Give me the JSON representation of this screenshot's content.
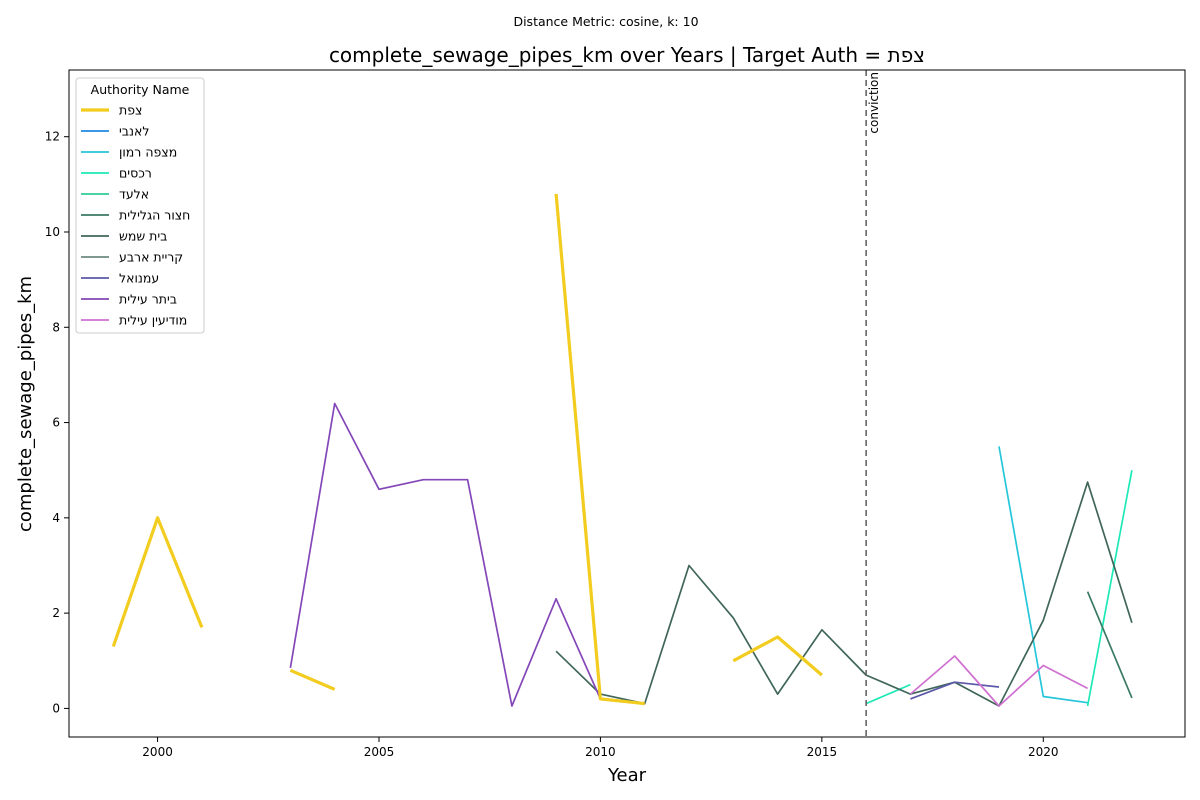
{
  "suptitle": "Distance Metric: cosine, k: 10",
  "chart_data": {
    "type": "line",
    "title": "complete_sewage_pipes_km over Years | Target Auth = צפת",
    "xlabel": "Year",
    "ylabel": "complete_sewage_pipes_km",
    "xlim": [
      1998.0,
      2023.2
    ],
    "ylim": [
      -0.6,
      13.4
    ],
    "xticks": [
      2000,
      2005,
      2010,
      2015,
      2020
    ],
    "yticks": [
      0,
      2,
      4,
      6,
      8,
      10,
      12
    ],
    "grid": false,
    "legend": {
      "title": "Authority Name",
      "placement": "top-left"
    },
    "vline": {
      "x": 2016,
      "label": "conviction",
      "color": "#666666"
    },
    "series": [
      {
        "name": "צפת",
        "color": "#f2cc1f",
        "target": true,
        "points": [
          [
            1999,
            1.3
          ],
          [
            2000,
            4.0
          ],
          [
            2001,
            1.7
          ],
          [
            2002,
            null
          ],
          [
            2003,
            0.8
          ],
          [
            2004,
            0.4
          ],
          [
            2005,
            null
          ],
          [
            2009,
            10.8
          ],
          [
            2010,
            0.2
          ],
          [
            2011,
            0.1
          ],
          [
            2012,
            null
          ],
          [
            2013,
            1.0
          ],
          [
            2014,
            1.5
          ],
          [
            2015,
            0.7
          ]
        ]
      },
      {
        "name": "לאנבי",
        "color": "#1e88e5",
        "points": []
      },
      {
        "name": "מצפה רמון",
        "color": "#26c6da",
        "points": [
          [
            2019,
            5.5
          ],
          [
            2020,
            0.25
          ],
          [
            2021,
            0.12
          ]
        ]
      },
      {
        "name": "רכסים",
        "color": "#1de9b6",
        "points": [
          [
            2016,
            0.1
          ],
          [
            2017,
            0.5
          ],
          [
            2018,
            null
          ],
          [
            2021,
            0.05
          ],
          [
            2022,
            5.0
          ]
        ]
      },
      {
        "name": "אלעד",
        "color": "#2ecc9a",
        "points": []
      },
      {
        "name": "חצור הגלילית",
        "color": "#3a7a63",
        "points": [
          [
            2021,
            2.45
          ],
          [
            2022,
            0.22
          ]
        ]
      },
      {
        "name": "בית שמש",
        "color": "#40665a",
        "points": [
          [
            2009,
            1.2
          ],
          [
            2010,
            0.3
          ],
          [
            2011,
            0.1
          ],
          [
            2012,
            3.0
          ],
          [
            2013,
            1.9
          ],
          [
            2014,
            0.3
          ],
          [
            2015,
            1.65
          ],
          [
            2016,
            0.7
          ],
          [
            2017,
            0.3
          ],
          [
            2018,
            0.55
          ],
          [
            2019,
            0.05
          ],
          [
            2020,
            1.85
          ],
          [
            2021,
            4.75
          ],
          [
            2022,
            1.8
          ]
        ]
      },
      {
        "name": "קריית ארבע",
        "color": "#6e8a83",
        "points": []
      },
      {
        "name": "עמנואל",
        "color": "#5c5aa8",
        "points": [
          [
            2017,
            0.2
          ],
          [
            2018,
            0.55
          ],
          [
            2019,
            0.45
          ]
        ]
      },
      {
        "name": "ביתר עילית",
        "color": "#8447b8",
        "points": [
          [
            2003,
            0.85
          ],
          [
            2004,
            6.4
          ],
          [
            2005,
            4.6
          ],
          [
            2006,
            4.8
          ],
          [
            2007,
            4.8
          ],
          [
            2008,
            0.05
          ],
          [
            2009,
            2.3
          ],
          [
            2010,
            0.2
          ]
        ]
      },
      {
        "name": "מודיעין עילית",
        "color": "#d070d0",
        "points": [
          [
            2017,
            0.3
          ],
          [
            2018,
            1.1
          ],
          [
            2019,
            0.05
          ],
          [
            2020,
            0.9
          ],
          [
            2021,
            0.42
          ]
        ]
      }
    ]
  }
}
